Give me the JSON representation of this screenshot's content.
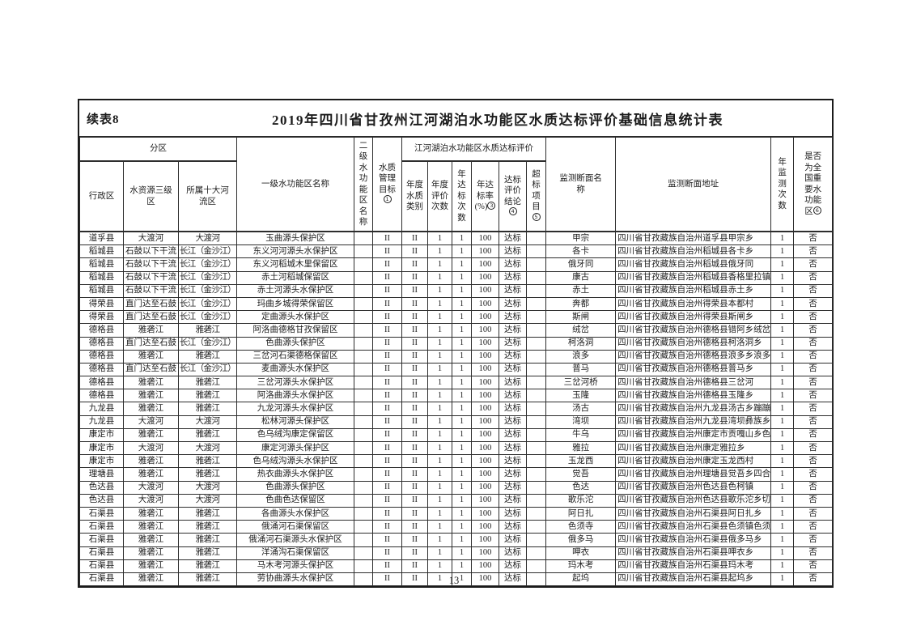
{
  "page": {
    "continuation_label": "续表8",
    "title": "2019年四川省甘孜州江河湖泊水功能区水质达标评价基础信息统计表",
    "page_number": "13"
  },
  "table": {
    "headers": {
      "partition": "分区",
      "admin": "行政区",
      "water_resource": "水资源三级区",
      "river_basin": "所属十大河流区",
      "primary_zone": "一级水功能区名称",
      "secondary_zone": "二级水功能区名称",
      "quality_target": "水质管理目标",
      "eval_group": "江河湖泊水功能区水质达标评价",
      "annual_class": "年度水质类别",
      "annual_eval": "年度评价次数",
      "annual_pass": "年达标次数",
      "pass_rate": "年达标率(%)",
      "conclusion": "达标评价结论",
      "exceed": "超标项目",
      "section_name": "监测断面名称",
      "section_address": "监测断面地址",
      "monitor_count": "年监测次数",
      "national": "是否为全国重要水功能区"
    },
    "sups": {
      "quality_target": "1",
      "pass_rate": "3",
      "conclusion": "4",
      "exceed": "5",
      "national": "6"
    },
    "rows": [
      [
        "道孚县",
        "大渡河",
        "大渡河",
        "玉曲源头保护区",
        "",
        "II",
        "II",
        "1",
        "1",
        "100",
        "达标",
        "",
        "甲宗",
        "四川省甘孜藏族自治州道孚县甲宗乡",
        "1",
        "否"
      ],
      [
        "稻城县",
        "石鼓以下干流",
        "长江（金沙江）",
        "东义河河源头水保护区",
        "",
        "II",
        "II",
        "1",
        "1",
        "100",
        "达标",
        "",
        "各卡",
        "四川省甘孜藏族自治州稻城县各卡乡",
        "1",
        "否"
      ],
      [
        "稻城县",
        "石鼓以下干流",
        "长江（金沙江）",
        "东义河稻城木里保留区",
        "",
        "II",
        "II",
        "1",
        "1",
        "100",
        "达标",
        "",
        "俄牙同",
        "四川省甘孜藏族自治州稻城县俄牙同",
        "1",
        "否"
      ],
      [
        "稻城县",
        "石鼓以下干流",
        "长江（金沙江）",
        "赤土河稻城保留区",
        "",
        "II",
        "II",
        "1",
        "1",
        "100",
        "达标",
        "",
        "康古",
        "四川省甘孜藏族自治州稻城县香格里拉镇康古村",
        "1",
        "否"
      ],
      [
        "稻城县",
        "石鼓以下干流",
        "长江（金沙江）",
        "赤土河源头水保护区",
        "",
        "II",
        "II",
        "1",
        "1",
        "100",
        "达标",
        "",
        "赤土",
        "四川省甘孜藏族自治州稻城县赤土乡",
        "1",
        "否"
      ],
      [
        "得荣县",
        "直门达至石鼓",
        "长江（金沙江）",
        "玛曲乡城得荣保留区",
        "",
        "II",
        "II",
        "1",
        "1",
        "100",
        "达标",
        "",
        "奔都",
        "四川省甘孜藏族自治州得荣县本都村",
        "1",
        "否"
      ],
      [
        "得荣县",
        "直门达至石鼓",
        "长江（金沙江）",
        "定曲源头水保护区",
        "",
        "II",
        "II",
        "1",
        "1",
        "100",
        "达标",
        "",
        "斯闸",
        "四川省甘孜藏族自治州得荣县斯闸乡",
        "1",
        "否"
      ],
      [
        "德格县",
        "雅砻江",
        "雅砻江",
        "阿洛曲德格甘孜保留区",
        "",
        "II",
        "II",
        "1",
        "1",
        "100",
        "达标",
        "",
        "绒岔",
        "四川省甘孜藏族自治州德格县错阿乡绒岔村",
        "1",
        "否"
      ],
      [
        "德格县",
        "直门达至石鼓",
        "长江（金沙江）",
        "色曲源头保护区",
        "",
        "II",
        "II",
        "1",
        "1",
        "100",
        "达标",
        "",
        "柯洛洞",
        "四川省甘孜藏族自治州德格县柯洛洞乡",
        "1",
        "否"
      ],
      [
        "德格县",
        "雅砻江",
        "雅砻江",
        "三岔河石渠德格保留区",
        "",
        "II",
        "II",
        "1",
        "1",
        "100",
        "达标",
        "",
        "浪多",
        "四川省甘孜藏族自治州德格县浪多乡浪多村",
        "1",
        "否"
      ],
      [
        "德格县",
        "直门达至石鼓",
        "长江（金沙江）",
        "麦曲源头水保护区",
        "",
        "II",
        "II",
        "1",
        "1",
        "100",
        "达标",
        "",
        "普马",
        "四川省甘孜藏族自治州德格县普马乡",
        "1",
        "否"
      ],
      [
        "德格县",
        "雅砻江",
        "雅砻江",
        "三岔河源头水保护区",
        "",
        "II",
        "II",
        "1",
        "1",
        "100",
        "达标",
        "",
        "三岔河桥",
        "四川省甘孜藏族自治州德格县三岔河",
        "1",
        "否"
      ],
      [
        "德格县",
        "雅砻江",
        "雅砻江",
        "阿洛曲源头水保护区",
        "",
        "II",
        "II",
        "1",
        "1",
        "100",
        "达标",
        "",
        "玉隆",
        "四川省甘孜藏族自治州德格县玉隆乡",
        "1",
        "否"
      ],
      [
        "九龙县",
        "雅砻江",
        "雅砻江",
        "九龙河源头水保护区",
        "",
        "II",
        "II",
        "1",
        "1",
        "100",
        "达标",
        "",
        "汤古",
        "四川省甘孜藏族自治州九龙县汤古乡蹦蹦冲村",
        "1",
        "否"
      ],
      [
        "九龙县",
        "大渡河",
        "大渡河",
        "松林河源头保护区",
        "",
        "II",
        "II",
        "1",
        "1",
        "100",
        "达标",
        "",
        "湾坝",
        "四川省甘孜藏族自治州九龙县湾坝彝族乡",
        "1",
        "否"
      ],
      [
        "康定市",
        "雅砻江",
        "雅砻江",
        "色乌绒沟康定保留区",
        "",
        "II",
        "II",
        "1",
        "1",
        "100",
        "达标",
        "",
        "牛乌",
        "四川省甘孜藏族自治州康定市贡嘎山乡色乌绒村",
        "1",
        "否"
      ],
      [
        "康定市",
        "大渡河",
        "大渡河",
        "康定河源头保护区",
        "",
        "II",
        "II",
        "1",
        "1",
        "100",
        "达标",
        "",
        "雅拉",
        "四川省甘孜藏族自治州康定雅拉乡",
        "1",
        "否"
      ],
      [
        "康定市",
        "雅砻江",
        "雅砻江",
        "色乌绒沟源头水保护区",
        "",
        "II",
        "II",
        "1",
        "1",
        "100",
        "达标",
        "",
        "玉龙西",
        "四川省甘孜藏族自治州康定玉龙西村",
        "1",
        "否"
      ],
      [
        "理塘县",
        "雅砻江",
        "雅砻江",
        "热衣曲源头水保护区",
        "",
        "II",
        "II",
        "1",
        "1",
        "100",
        "达标",
        "",
        "觉吾",
        "四川省甘孜藏族自治州理塘县觉吾乡四合村",
        "1",
        "否"
      ],
      [
        "色达县",
        "大渡河",
        "大渡河",
        "色曲源头保护区",
        "",
        "II",
        "II",
        "1",
        "1",
        "100",
        "达标",
        "",
        "色达",
        "四川省甘孜藏族自治州色达县色柯镇",
        "1",
        "否"
      ],
      [
        "色达县",
        "大渡河",
        "大渡河",
        "色曲色达保留区",
        "",
        "II",
        "II",
        "1",
        "1",
        "100",
        "达标",
        "",
        "歌乐沱",
        "四川省甘孜藏族自治州色达县歌乐沱乡切柯村",
        "1",
        "否"
      ],
      [
        "石渠县",
        "雅砻江",
        "雅砻江",
        "各曲源头水保护区",
        "",
        "II",
        "II",
        "1",
        "1",
        "100",
        "达标",
        "",
        "阿日扎",
        "四川省甘孜藏族自治州石渠县阿日扎乡",
        "1",
        "否"
      ],
      [
        "石渠县",
        "雅砻江",
        "雅砻江",
        "俄涌河石渠保留区",
        "",
        "II",
        "II",
        "1",
        "1",
        "100",
        "达标",
        "",
        "色须寺",
        "四川省甘孜藏族自治州石渠县色须镇色须寺",
        "1",
        "否"
      ],
      [
        "石渠县",
        "雅砻江",
        "雅砻江",
        "俄涌河石渠源头水保护区",
        "",
        "II",
        "II",
        "1",
        "1",
        "100",
        "达标",
        "",
        "俄多马",
        "四川省甘孜藏族自治州石渠县俄多马乡",
        "1",
        "否"
      ],
      [
        "石渠县",
        "雅砻江",
        "雅砻江",
        "洋涌沟石渠保留区",
        "",
        "II",
        "II",
        "1",
        "1",
        "100",
        "达标",
        "",
        "呷衣",
        "四川省甘孜藏族自治州石渠县呷衣乡",
        "1",
        "否"
      ],
      [
        "石渠县",
        "雅砻江",
        "雅砻江",
        "马木考河源头保护区",
        "",
        "II",
        "II",
        "1",
        "1",
        "100",
        "达标",
        "",
        "玛木考",
        "四川省甘孜藏族自治州石渠县玛木考",
        "1",
        "否"
      ],
      [
        "石渠县",
        "雅砻江",
        "雅砻江",
        "劳协曲源头水保护区",
        "",
        "II",
        "II",
        "1",
        "1",
        "100",
        "达标",
        "",
        "起坞",
        "四川省甘孜藏族自治州石渠县起坞乡",
        "1",
        "否"
      ]
    ]
  }
}
